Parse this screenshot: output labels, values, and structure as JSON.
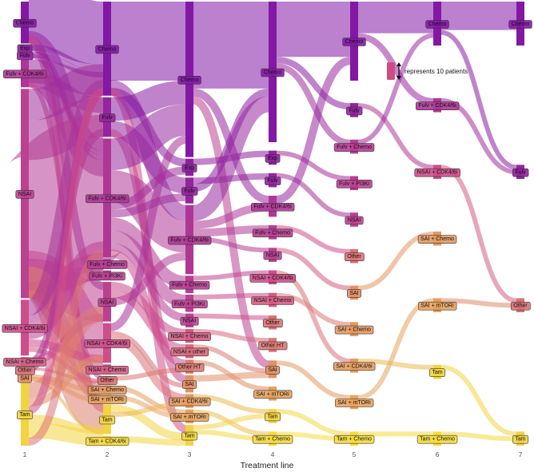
{
  "chart_data": {
    "type": "sankey",
    "xlabel": "Treatment line",
    "x_ticks": [
      "1",
      "2",
      "3",
      "4",
      "5",
      "6",
      "7"
    ],
    "legend": {
      "text": "represents 10 patients",
      "unit_patients": 10,
      "placement": "top-right"
    },
    "colors": {
      "high": "#7a12a8",
      "mid": "#d0508a",
      "low": "#f6e23a"
    },
    "nodes": [
      {
        "id": "l1-chemo",
        "line": 1,
        "label": "Chemo",
        "patients": 60,
        "c": 0.05
      },
      {
        "id": "l1-exp",
        "line": 1,
        "label": "Exp",
        "patients": 8,
        "c": 0.12
      },
      {
        "id": "l1-fulv",
        "line": 1,
        "label": "Fulv",
        "patients": 8,
        "c": 0.15
      },
      {
        "id": "l1-fulvcdk",
        "line": 1,
        "label": "Fulv + CDK4/6i",
        "patients": 40,
        "c": 0.3
      },
      {
        "id": "l1-nsai",
        "line": 1,
        "label": "NSAI",
        "patients": 300,
        "c": 0.38
      },
      {
        "id": "l1-nsaicdk",
        "line": 1,
        "label": "NSAI + CDK4/6i",
        "patients": 80,
        "c": 0.48
      },
      {
        "id": "l1-nsaichemo",
        "line": 1,
        "label": "NSAI + Chemo",
        "patients": 12,
        "c": 0.54
      },
      {
        "id": "l1-other",
        "line": 1,
        "label": "Other",
        "patients": 8,
        "c": 0.62
      },
      {
        "id": "l1-sai",
        "line": 1,
        "label": "SAI",
        "patients": 10,
        "c": 0.72
      },
      {
        "id": "l1-tam",
        "line": 1,
        "label": "Tam",
        "patients": 90,
        "c": 0.95
      },
      {
        "id": "l2-chemo",
        "line": 2,
        "label": "Chemo",
        "patients": 95,
        "c": 0.05
      },
      {
        "id": "l2-fulv",
        "line": 2,
        "label": "Fulv",
        "patients": 40,
        "c": 0.15
      },
      {
        "id": "l2-fulvcdk",
        "line": 2,
        "label": "Fulv + CDK4/6i",
        "patients": 120,
        "c": 0.3
      },
      {
        "id": "l2-fulvchemo",
        "line": 2,
        "label": "Fulv + Chemo",
        "patients": 10,
        "c": 0.35
      },
      {
        "id": "l2-fulvpi3k",
        "line": 2,
        "label": "Fulv + PI3Ki",
        "patients": 10,
        "c": 0.37
      },
      {
        "id": "l2-nsai",
        "line": 2,
        "label": "NSAI",
        "patients": 40,
        "c": 0.38
      },
      {
        "id": "l2-nsaicdk",
        "line": 2,
        "label": "NSAI + CDK4/6i",
        "patients": 40,
        "c": 0.48
      },
      {
        "id": "l2-nsaichemo",
        "line": 2,
        "label": "NSAI + Chemo",
        "patients": 10,
        "c": 0.54
      },
      {
        "id": "l2-other",
        "line": 2,
        "label": "Other",
        "patients": 8,
        "c": 0.62
      },
      {
        "id": "l2-saichemo",
        "line": 2,
        "label": "SAI + Chemo",
        "patients": 8,
        "c": 0.75
      },
      {
        "id": "l2-saimtor",
        "line": 2,
        "label": "SAI + mTORi",
        "patients": 8,
        "c": 0.78
      },
      {
        "id": "l2-tam",
        "line": 2,
        "label": "Tam",
        "patients": 30,
        "c": 0.95
      },
      {
        "id": "l2-tamcdk",
        "line": 2,
        "label": "Tam + CDK4/6i",
        "patients": 10,
        "c": 0.97
      },
      {
        "id": "l3-chemo",
        "line": 3,
        "label": "Chemo",
        "patients": 90,
        "c": 0.05
      },
      {
        "id": "l3-exp",
        "line": 3,
        "label": "Exp",
        "patients": 10,
        "c": 0.12
      },
      {
        "id": "l3-fulv",
        "line": 3,
        "label": "Fulv",
        "patients": 15,
        "c": 0.15
      },
      {
        "id": "l3-fulvcdk",
        "line": 3,
        "label": "Fulv + CDK4/6i",
        "patients": 40,
        "c": 0.3
      },
      {
        "id": "l3-fulvchemo",
        "line": 3,
        "label": "Fulv + Chemo",
        "patients": 10,
        "c": 0.35
      },
      {
        "id": "l3-fulvpi3k",
        "line": 3,
        "label": "Fulv + PI3Ki",
        "patients": 10,
        "c": 0.37
      },
      {
        "id": "l3-nsai",
        "line": 3,
        "label": "NSAI",
        "patients": 8,
        "c": 0.38
      },
      {
        "id": "l3-nsaichemo",
        "line": 3,
        "label": "NSAI + Chemo",
        "patients": 8,
        "c": 0.54
      },
      {
        "id": "l3-nsaiother",
        "line": 3,
        "label": "NSAI + other",
        "patients": 8,
        "c": 0.58
      },
      {
        "id": "l3-otherht",
        "line": 3,
        "label": "Other HT",
        "patients": 8,
        "c": 0.64
      },
      {
        "id": "l3-sai",
        "line": 3,
        "label": "SAI",
        "patients": 10,
        "c": 0.72
      },
      {
        "id": "l3-saicdk",
        "line": 3,
        "label": "SAI + CDK4/6i",
        "patients": 8,
        "c": 0.76
      },
      {
        "id": "l3-saimtor",
        "line": 3,
        "label": "SAI + mTORi",
        "patients": 8,
        "c": 0.78
      },
      {
        "id": "l3-tam",
        "line": 3,
        "label": "Tam",
        "patients": 12,
        "c": 0.95
      },
      {
        "id": "l4-chemo",
        "line": 4,
        "label": "Chemo",
        "patients": 80,
        "c": 0.05
      },
      {
        "id": "l4-exp",
        "line": 4,
        "label": "Exp",
        "patients": 8,
        "c": 0.12
      },
      {
        "id": "l4-fulv",
        "line": 4,
        "label": "Fulv",
        "patients": 8,
        "c": 0.15
      },
      {
        "id": "l4-fulvcdk",
        "line": 4,
        "label": "Fulv + CDK4/6i",
        "patients": 12,
        "c": 0.3
      },
      {
        "id": "l4-fulvchemo",
        "line": 4,
        "label": "Fulv + Chemo",
        "patients": 8,
        "c": 0.35
      },
      {
        "id": "l4-nsai",
        "line": 4,
        "label": "NSAI",
        "patients": 8,
        "c": 0.38
      },
      {
        "id": "l4-nsaicdk",
        "line": 4,
        "label": "NSAI + CDK4/6i",
        "patients": 8,
        "c": 0.48
      },
      {
        "id": "l4-nsaichemo",
        "line": 4,
        "label": "NSAI + Chemo",
        "patients": 8,
        "c": 0.54
      },
      {
        "id": "l4-other",
        "line": 4,
        "label": "Other",
        "patients": 8,
        "c": 0.62
      },
      {
        "id": "l4-otherht",
        "line": 4,
        "label": "Other HT",
        "patients": 8,
        "c": 0.64
      },
      {
        "id": "l4-sai",
        "line": 4,
        "label": "SAI",
        "patients": 10,
        "c": 0.72
      },
      {
        "id": "l4-saimtor",
        "line": 4,
        "label": "SAI + mTORi",
        "patients": 8,
        "c": 0.78
      },
      {
        "id": "l4-tam",
        "line": 4,
        "label": "Tam",
        "patients": 8,
        "c": 0.95
      },
      {
        "id": "l4-tamchemo",
        "line": 4,
        "label": "Tam + Chemo",
        "patients": 8,
        "c": 0.98
      },
      {
        "id": "l5-chemo",
        "line": 5,
        "label": "Chemo",
        "patients": 45,
        "c": 0.05
      },
      {
        "id": "l5-fulv",
        "line": 5,
        "label": "Fulv",
        "patients": 8,
        "c": 0.15
      },
      {
        "id": "l5-fulvchemo",
        "line": 5,
        "label": "Fulv + Chemo",
        "patients": 8,
        "c": 0.35
      },
      {
        "id": "l5-fulvpi3k",
        "line": 5,
        "label": "Fulv + PI3Ki",
        "patients": 8,
        "c": 0.37
      },
      {
        "id": "l5-nsai",
        "line": 5,
        "label": "NSAI",
        "patients": 8,
        "c": 0.38
      },
      {
        "id": "l5-other",
        "line": 5,
        "label": "Other",
        "patients": 8,
        "c": 0.62
      },
      {
        "id": "l5-sai",
        "line": 5,
        "label": "SAI",
        "patients": 8,
        "c": 0.72
      },
      {
        "id": "l5-saicdk",
        "line": 5,
        "label": "SAI + CDK4/6i",
        "patients": 8,
        "c": 0.76
      },
      {
        "id": "l5-saichemo",
        "line": 5,
        "label": "SAI + Chemo",
        "patients": 8,
        "c": 0.75
      },
      {
        "id": "l5-saimtor",
        "line": 5,
        "label": "SAI + mTORi",
        "patients": 8,
        "c": 0.78
      },
      {
        "id": "l5-tamchemo",
        "line": 5,
        "label": "Tam + Chemo",
        "patients": 8,
        "c": 0.98
      },
      {
        "id": "l6-chemo",
        "line": 6,
        "label": "Chemo",
        "patients": 25,
        "c": 0.05
      },
      {
        "id": "l6-fulvcdk",
        "line": 6,
        "label": "Fulv + CDK4/6i",
        "patients": 8,
        "c": 0.3
      },
      {
        "id": "l6-nsaicdk",
        "line": 6,
        "label": "NSAI + CDK4/6i",
        "patients": 8,
        "c": 0.48
      },
      {
        "id": "l6-saichemo",
        "line": 6,
        "label": "SAI + Chemo",
        "patients": 8,
        "c": 0.75
      },
      {
        "id": "l6-saimtor",
        "line": 6,
        "label": "SAI + mTORi",
        "patients": 8,
        "c": 0.78
      },
      {
        "id": "l6-tam",
        "line": 6,
        "label": "Tam",
        "patients": 8,
        "c": 0.95
      },
      {
        "id": "l6-tamchemo",
        "line": 6,
        "label": "Tam + Chemo",
        "patients": 8,
        "c": 0.98
      },
      {
        "id": "l7-chemo",
        "line": 7,
        "label": "Chemo",
        "patients": 25,
        "c": 0.05
      },
      {
        "id": "l7-fulv",
        "line": 7,
        "label": "Fulv",
        "patients": 8,
        "c": 0.15
      },
      {
        "id": "l7-other",
        "line": 7,
        "label": "Other",
        "patients": 8,
        "c": 0.62
      },
      {
        "id": "l7-tam",
        "line": 7,
        "label": "Tam",
        "patients": 8,
        "c": 0.95
      }
    ],
    "links": [
      [
        "l1-chemo",
        "l2-chemo",
        40
      ],
      [
        "l1-chemo",
        "l2-fulvcdk",
        8
      ],
      [
        "l1-chemo",
        "l2-nsai",
        5
      ],
      [
        "l1-chemo",
        "l2-tam",
        5
      ],
      [
        "l1-exp",
        "l2-chemo",
        4
      ],
      [
        "l1-exp",
        "l2-fulvcdk",
        3
      ],
      [
        "l1-fulv",
        "l2-chemo",
        4
      ],
      [
        "l1-fulv",
        "l2-fulvcdk",
        3
      ],
      [
        "l1-fulvcdk",
        "l2-chemo",
        15
      ],
      [
        "l1-fulvcdk",
        "l2-fulv",
        10
      ],
      [
        "l1-fulvcdk",
        "l2-fulvcdk",
        10
      ],
      [
        "l1-fulvcdk",
        "l2-other",
        3
      ],
      [
        "l1-nsai",
        "l2-chemo",
        20
      ],
      [
        "l1-nsai",
        "l2-fulv",
        25
      ],
      [
        "l1-nsai",
        "l2-fulvcdk",
        90
      ],
      [
        "l1-nsai",
        "l2-fulvchemo",
        10
      ],
      [
        "l1-nsai",
        "l2-fulvpi3k",
        10
      ],
      [
        "l1-nsai",
        "l2-nsai",
        25
      ],
      [
        "l1-nsai",
        "l2-nsaicdk",
        30
      ],
      [
        "l1-nsai",
        "l2-nsaichemo",
        8
      ],
      [
        "l1-nsai",
        "l2-saichemo",
        5
      ],
      [
        "l1-nsai",
        "l2-saimtor",
        5
      ],
      [
        "l1-nsai",
        "l2-tam",
        20
      ],
      [
        "l1-nsaicdk",
        "l2-chemo",
        10
      ],
      [
        "l1-nsaicdk",
        "l2-fulv",
        5
      ],
      [
        "l1-nsaicdk",
        "l2-fulvcdk",
        10
      ],
      [
        "l1-nsaicdk",
        "l2-nsaicdk",
        5
      ],
      [
        "l1-nsaicdk",
        "l2-other",
        3
      ],
      [
        "l1-nsaichemo",
        "l2-nsai",
        5
      ],
      [
        "l1-nsaichemo",
        "l2-chemo",
        4
      ],
      [
        "l1-other",
        "l2-other",
        2
      ],
      [
        "l1-other",
        "l2-chemo",
        3
      ],
      [
        "l1-sai",
        "l2-saichemo",
        3
      ],
      [
        "l1-sai",
        "l2-saimtor",
        3
      ],
      [
        "l1-sai",
        "l2-tam",
        2
      ],
      [
        "l1-tam",
        "l2-nsai",
        10
      ],
      [
        "l1-tam",
        "l2-nsaicdk",
        5
      ],
      [
        "l1-tam",
        "l2-chemo",
        5
      ],
      [
        "l1-tam",
        "l2-tam",
        5
      ],
      [
        "l1-tam",
        "l2-tamcdk",
        10
      ],
      [
        "l1-tam",
        "l2-fulvcdk",
        5
      ],
      [
        "l2-chemo",
        "l3-chemo",
        50
      ],
      [
        "l2-chemo",
        "l3-fulvcdk",
        10
      ],
      [
        "l2-chemo",
        "l3-exp",
        5
      ],
      [
        "l2-chemo",
        "l3-tam",
        5
      ],
      [
        "l2-fulv",
        "l3-chemo",
        15
      ],
      [
        "l2-fulv",
        "l3-fulv",
        10
      ],
      [
        "l2-fulv",
        "l3-sai",
        5
      ],
      [
        "l2-fulvcdk",
        "l3-chemo",
        20
      ],
      [
        "l2-fulvcdk",
        "l3-fulvcdk",
        20
      ],
      [
        "l2-fulvcdk",
        "l3-exp",
        5
      ],
      [
        "l2-fulvcdk",
        "l3-fulv",
        5
      ],
      [
        "l2-fulvcdk",
        "l3-fulvchemo",
        8
      ],
      [
        "l2-fulvcdk",
        "l3-fulvpi3k",
        8
      ],
      [
        "l2-fulvcdk",
        "l3-nsai",
        5
      ],
      [
        "l2-fulvcdk",
        "l3-otherht",
        5
      ],
      [
        "l2-nsai",
        "l3-nsaichemo",
        5
      ],
      [
        "l2-nsai",
        "l3-nsaiother",
        5
      ],
      [
        "l2-nsai",
        "l3-fulvcdk",
        5
      ],
      [
        "l2-nsaicdk",
        "l3-chemo",
        5
      ],
      [
        "l2-nsaicdk",
        "l3-sai",
        3
      ],
      [
        "l2-nsaicdk",
        "l3-saicdk",
        5
      ],
      [
        "l2-other",
        "l3-otherht",
        3
      ],
      [
        "l2-saichemo",
        "l3-saimtor",
        3
      ],
      [
        "l2-saimtor",
        "l3-saimtor",
        3
      ],
      [
        "l2-tam",
        "l3-tam",
        5
      ],
      [
        "l2-tam",
        "l3-saicdk",
        3
      ],
      [
        "l2-tamcdk",
        "l3-tam",
        4
      ],
      [
        "l3-chemo",
        "l4-chemo",
        55
      ],
      [
        "l3-chemo",
        "l4-fulvcdk",
        5
      ],
      [
        "l3-chemo",
        "l4-sai",
        5
      ],
      [
        "l3-exp",
        "l4-exp",
        4
      ],
      [
        "l3-fulv",
        "l4-fulv",
        4
      ],
      [
        "l3-fulv",
        "l4-chemo",
        5
      ],
      [
        "l3-fulvcdk",
        "l4-chemo",
        10
      ],
      [
        "l3-fulvcdk",
        "l4-fulvcdk",
        5
      ],
      [
        "l3-fulvcdk",
        "l4-fulvchemo",
        5
      ],
      [
        "l3-fulvcdk",
        "l4-nsai",
        3
      ],
      [
        "l3-fulvchemo",
        "l4-nsaicdk",
        3
      ],
      [
        "l3-fulvpi3k",
        "l4-nsaichemo",
        3
      ],
      [
        "l3-nsai",
        "l4-other",
        3
      ],
      [
        "l3-nsaichemo",
        "l4-otherht",
        3
      ],
      [
        "l3-nsaiother",
        "l4-sai",
        3
      ],
      [
        "l3-otherht",
        "l4-saimtor",
        3
      ],
      [
        "l3-sai",
        "l4-sai",
        4
      ],
      [
        "l3-saicdk",
        "l4-tam",
        3
      ],
      [
        "l3-saimtor",
        "l4-tamchemo",
        3
      ],
      [
        "l3-tam",
        "l4-tam",
        3
      ],
      [
        "l3-tam",
        "l4-tamchemo",
        3
      ],
      [
        "l4-chemo",
        "l5-chemo",
        35
      ],
      [
        "l4-chemo",
        "l5-fulv",
        4
      ],
      [
        "l4-chemo",
        "l5-fulvchemo",
        4
      ],
      [
        "l4-exp",
        "l5-fulvpi3k",
        3
      ],
      [
        "l4-fulv",
        "l5-nsai",
        3
      ],
      [
        "l4-fulvcdk",
        "l5-chemo",
        5
      ],
      [
        "l4-fulvchemo",
        "l5-other",
        3
      ],
      [
        "l4-nsai",
        "l5-sai",
        3
      ],
      [
        "l4-nsaicdk",
        "l5-saicdk",
        3
      ],
      [
        "l4-nsaichemo",
        "l5-saichemo",
        3
      ],
      [
        "l4-sai",
        "l5-saimtor",
        3
      ],
      [
        "l4-tam",
        "l5-tamchemo",
        3
      ],
      [
        "l4-tamchemo",
        "l5-tamchemo",
        3
      ],
      [
        "l5-chemo",
        "l6-chemo",
        20
      ],
      [
        "l5-chemo",
        "l6-fulvcdk",
        4
      ],
      [
        "l5-fulv",
        "l6-nsaicdk",
        3
      ],
      [
        "l5-fulvchemo",
        "l6-chemo",
        3
      ],
      [
        "l5-sai",
        "l6-saichemo",
        3
      ],
      [
        "l5-saimtor",
        "l6-saimtor",
        3
      ],
      [
        "l5-saicdk",
        "l6-tam",
        3
      ],
      [
        "l5-tamchemo",
        "l6-tamchemo",
        3
      ],
      [
        "l6-chemo",
        "l7-chemo",
        18
      ],
      [
        "l6-chemo",
        "l7-fulv",
        3
      ],
      [
        "l6-fulvcdk",
        "l7-fulv",
        3
      ],
      [
        "l6-nsaicdk",
        "l7-other",
        3
      ],
      [
        "l6-saimtor",
        "l7-other",
        3
      ],
      [
        "l6-tam",
        "l7-tam",
        3
      ],
      [
        "l6-tamchemo",
        "l7-tam",
        3
      ]
    ]
  }
}
